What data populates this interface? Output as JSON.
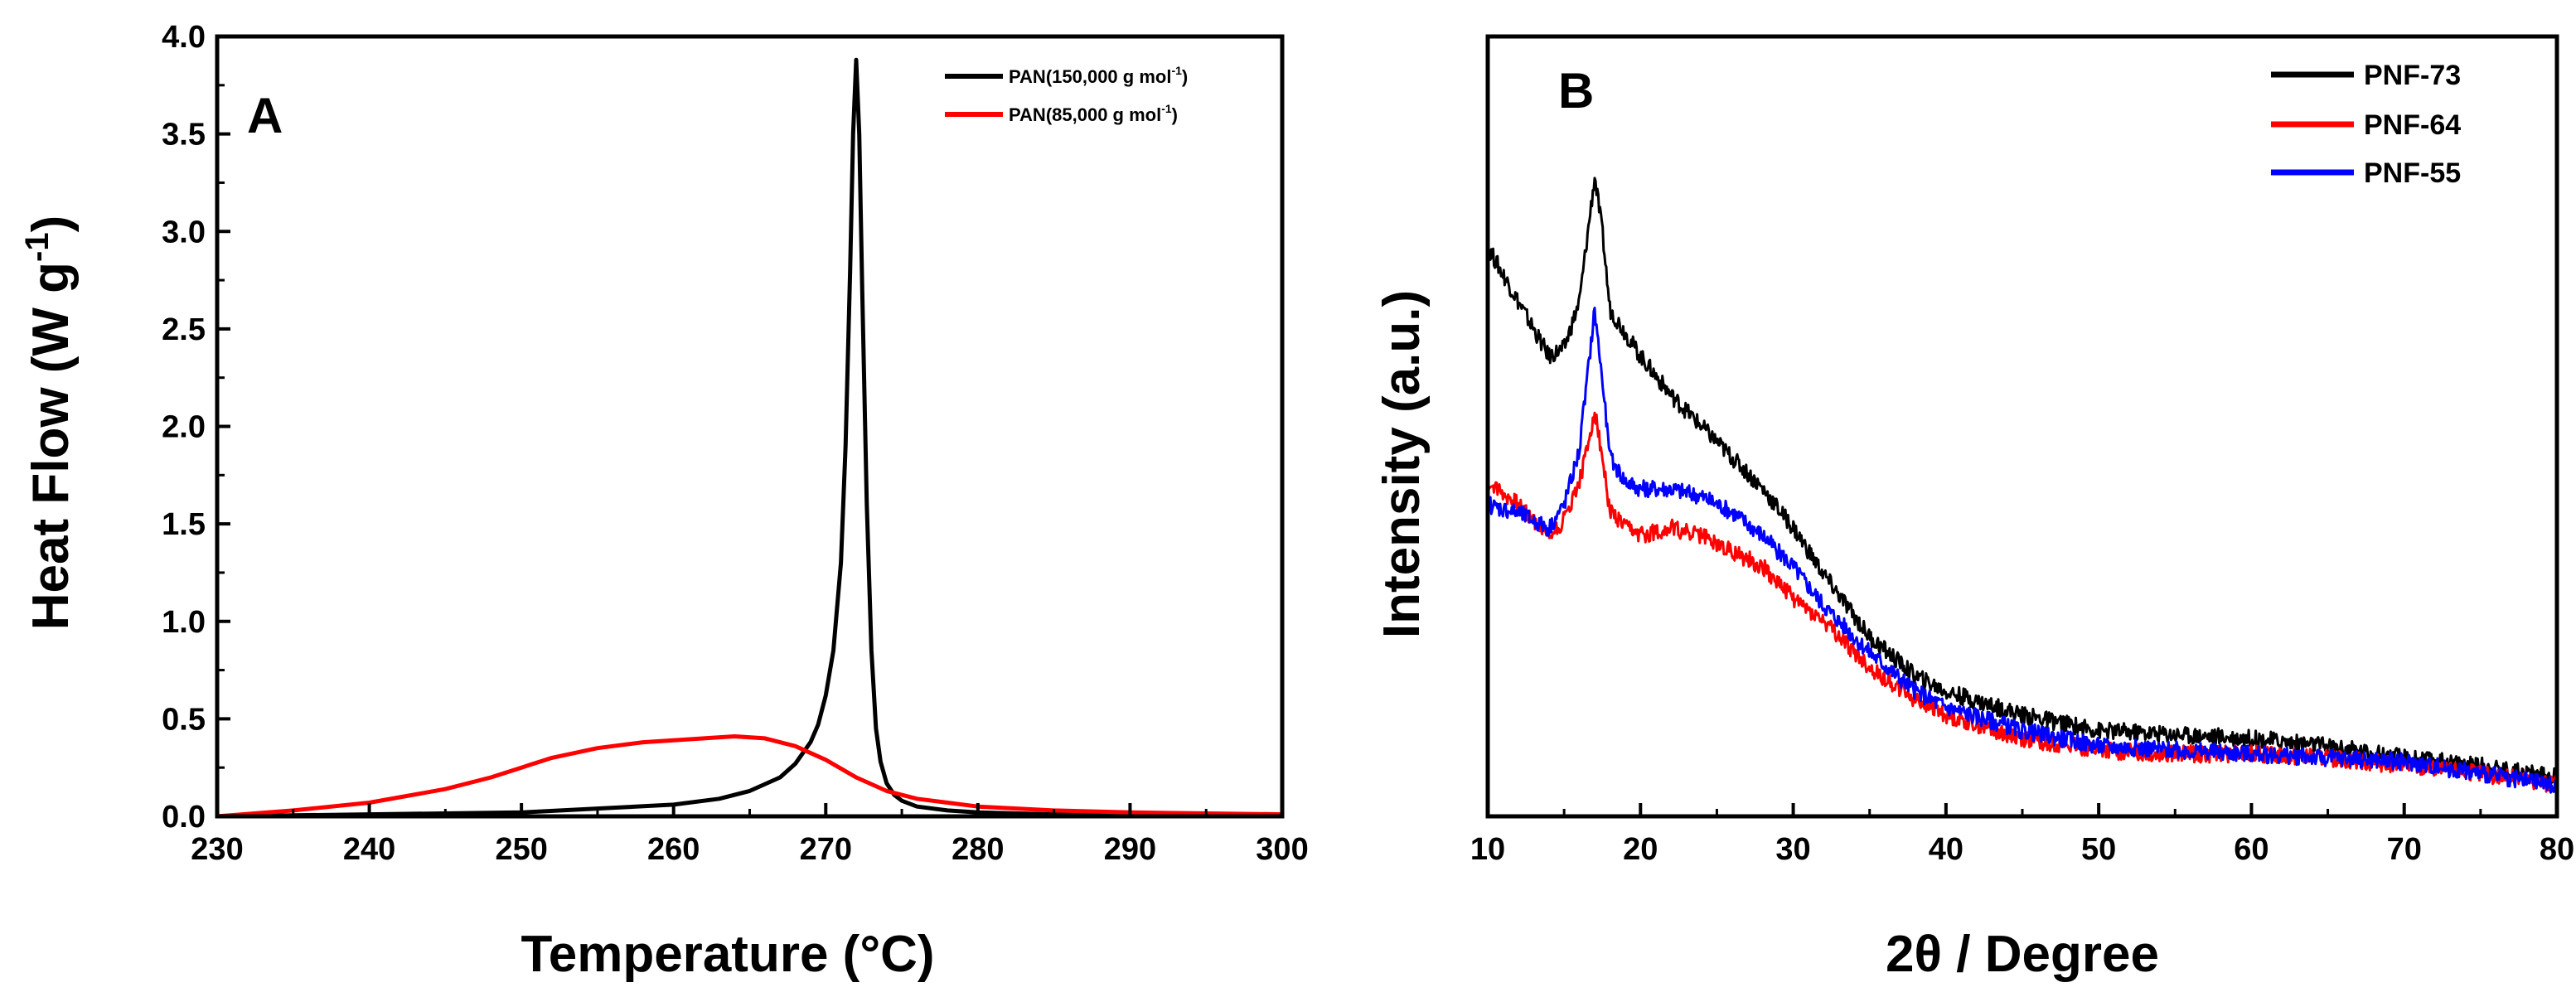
{
  "chart_data": [
    {
      "panel": "A",
      "type": "line",
      "xlabel": "Temperature",
      "xlabel_unit": "°C",
      "ylabel": "Heat Flow (W g",
      "ylabel_sup": "-1",
      "ylabel_close": ")",
      "xlim": [
        230,
        300
      ],
      "ylim": [
        0,
        4
      ],
      "xticks": [
        230,
        240,
        250,
        260,
        270,
        280,
        290,
        300
      ],
      "xtick_labels": [
        "230",
        "240",
        "250",
        "260",
        "270",
        "280",
        "290",
        "300"
      ],
      "yticks": [
        0,
        0.5,
        1,
        1.5,
        2,
        2.5,
        3,
        3.5,
        4
      ],
      "ytick_labels": [
        "0.0",
        "0.5",
        "1.0",
        "1.5",
        "2.0",
        "2.5",
        "3.0",
        "3.5",
        "4.0"
      ],
      "legend_position": "top-right",
      "series": [
        {
          "name": "PAN(150,000 g mol",
          "name_sup": "-1",
          "name_close": ")",
          "color": "#000000",
          "x": [
            230,
            240,
            250,
            255,
            260,
            263,
            265,
            267,
            268,
            269,
            269.5,
            270,
            270.5,
            271,
            271.3,
            271.6,
            271.8,
            272,
            272.2,
            272.4,
            272.7,
            273,
            273.3,
            273.6,
            274,
            274.5,
            275,
            276,
            278,
            280,
            285,
            290,
            300
          ],
          "y": [
            0.0,
            0.01,
            0.02,
            0.04,
            0.06,
            0.09,
            0.13,
            0.2,
            0.27,
            0.38,
            0.47,
            0.62,
            0.85,
            1.3,
            1.9,
            2.8,
            3.5,
            3.88,
            3.5,
            2.7,
            1.6,
            0.85,
            0.45,
            0.28,
            0.17,
            0.11,
            0.08,
            0.05,
            0.03,
            0.02,
            0.01,
            0.01,
            0.0
          ]
        },
        {
          "name": "PAN(85,000 g mol",
          "name_sup": "-1",
          "name_close": ")",
          "color": "#ff0000",
          "x": [
            230,
            235,
            240,
            245,
            248,
            250,
            252,
            255,
            258,
            260,
            262,
            264,
            266,
            268,
            270,
            272,
            274,
            276,
            278,
            280,
            285,
            290,
            300
          ],
          "y": [
            0.0,
            0.03,
            0.07,
            0.14,
            0.2,
            0.25,
            0.3,
            0.35,
            0.38,
            0.39,
            0.4,
            0.41,
            0.4,
            0.36,
            0.29,
            0.2,
            0.13,
            0.09,
            0.07,
            0.05,
            0.03,
            0.02,
            0.01
          ]
        }
      ]
    },
    {
      "panel": "B",
      "type": "line",
      "xlabel": "2θ / Degree",
      "ylabel": "Intensity (a.u.)",
      "xlim": [
        10,
        80
      ],
      "ylim": [
        0,
        100
      ],
      "xticks": [
        10,
        20,
        30,
        40,
        50,
        60,
        70,
        80
      ],
      "xtick_labels": [
        "10",
        "20",
        "30",
        "40",
        "50",
        "60",
        "70",
        "80"
      ],
      "yticks": [],
      "legend_position": "top-right",
      "series": [
        {
          "name": "PNF-73",
          "color": "#000000",
          "x": [
            10,
            12,
            14,
            15,
            16,
            16.5,
            17,
            17.5,
            18,
            19,
            20,
            22,
            24,
            26,
            28,
            30,
            32,
            35,
            38,
            40,
            45,
            50,
            55,
            60,
            65,
            70,
            75,
            80
          ],
          "y": [
            73,
            66,
            59,
            60,
            66,
            74,
            82,
            75,
            65,
            62,
            59,
            54,
            50,
            46,
            42,
            37,
            31,
            23,
            18,
            16,
            13,
            11,
            10.5,
            10,
            9,
            7.5,
            6.5,
            5
          ]
        },
        {
          "name": "PNF-64",
          "color": "#ff0000",
          "x": [
            10,
            12,
            14,
            15,
            16,
            16.5,
            17,
            17.5,
            18,
            19,
            20,
            22,
            24,
            26,
            28,
            30,
            32,
            35,
            38,
            40,
            45,
            50,
            55,
            60,
            65,
            70,
            75,
            80
          ],
          "y": [
            43,
            40,
            36,
            38,
            43,
            47,
            52,
            46,
            39,
            37,
            36,
            37,
            36,
            34,
            32,
            28,
            25,
            19,
            15,
            13,
            10,
            8.5,
            8,
            8,
            7.5,
            6.5,
            5.5,
            4
          ]
        },
        {
          "name": "PNF-55",
          "color": "#0000ff",
          "x": [
            10,
            12,
            14,
            15,
            16,
            16.5,
            17,
            17.5,
            18,
            19,
            20,
            22,
            24,
            26,
            28,
            30,
            32,
            35,
            38,
            40,
            45,
            50,
            55,
            60,
            65,
            70,
            75,
            80
          ],
          "y": [
            40,
            39,
            37,
            40,
            47,
            56,
            65,
            56,
            46,
            43,
            42,
            42,
            41,
            39,
            36,
            32,
            27,
            21,
            16,
            14,
            11,
            9,
            8.5,
            8,
            7.5,
            7,
            5.5,
            4
          ]
        }
      ]
    }
  ]
}
